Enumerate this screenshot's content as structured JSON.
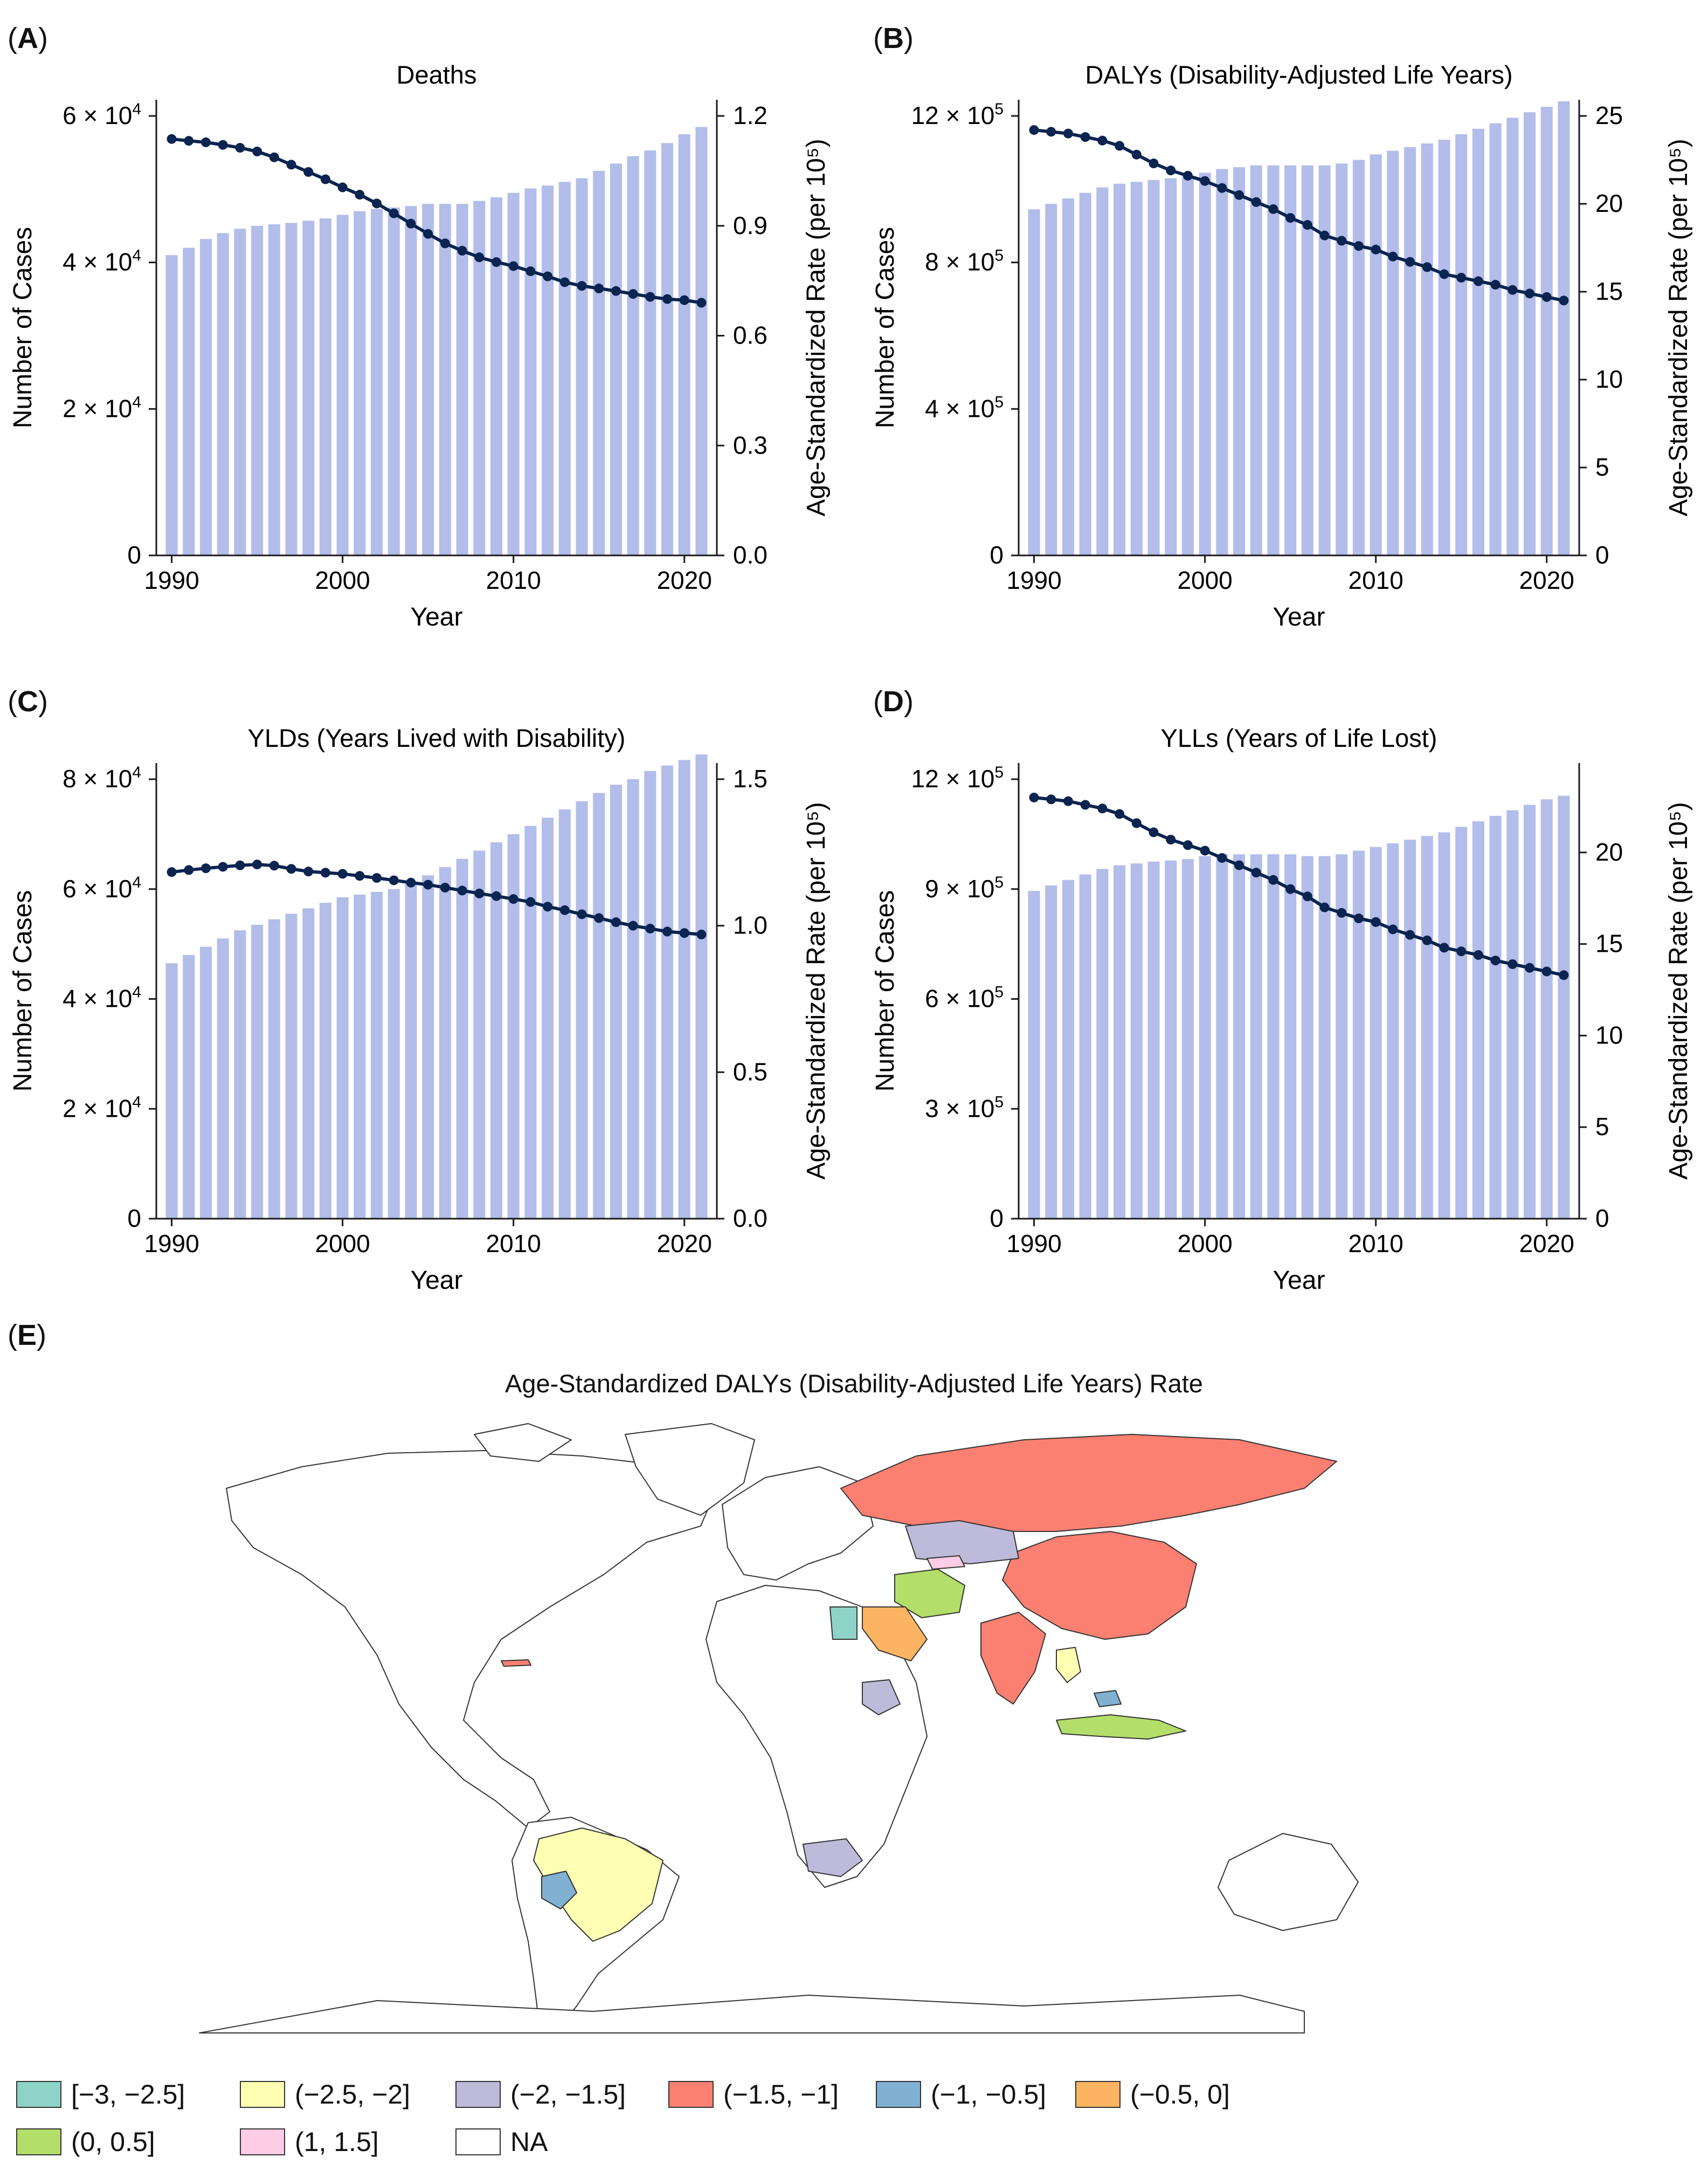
{
  "colors": {
    "bar": "#b3bdea",
    "line": "#0b2450",
    "axis": "#1a1a1a",
    "map_stroke": "#333333",
    "legend": {
      "c1": "#8dd3c7",
      "c2": "#ffffb3",
      "c3": "#bebada",
      "c4": "#fb8072",
      "c5": "#80b1d3",
      "c6": "#fdb462",
      "c7": "#b3de69",
      "c8": "#fccde5",
      "na": "#ffffff"
    }
  },
  "panels": {
    "A": {
      "tag_letter": "A",
      "paren_open": "(",
      "paren_close": ")"
    },
    "B": {
      "tag_letter": "B",
      "paren_open": "(",
      "paren_close": ")"
    },
    "C": {
      "tag_letter": "C",
      "paren_open": "(",
      "paren_close": ")"
    },
    "D": {
      "tag_letter": "D",
      "paren_open": "(",
      "paren_close": ")"
    },
    "E": {
      "tag_letter": "E",
      "paren_open": "(",
      "paren_close": ")"
    }
  },
  "chart_data": [
    {
      "type": "bar+line",
      "id": "A",
      "title": "Deaths",
      "xlabel": "Year",
      "ylabel": "Number of Cases",
      "y2label": "Age-Standardized Rate (per 10⁵)",
      "x": [
        1990,
        1991,
        1992,
        1993,
        1994,
        1995,
        1996,
        1997,
        1998,
        1999,
        2000,
        2001,
        2002,
        2003,
        2004,
        2005,
        2006,
        2007,
        2008,
        2009,
        2010,
        2011,
        2012,
        2013,
        2014,
        2015,
        2016,
        2017,
        2018,
        2019,
        2020,
        2021
      ],
      "bars": [
        41000,
        42000,
        43200,
        44000,
        44600,
        45000,
        45200,
        45400,
        45700,
        46000,
        46500,
        47000,
        47300,
        47500,
        47700,
        48000,
        48000,
        48000,
        48400,
        48900,
        49500,
        50100,
        50500,
        51000,
        51500,
        52500,
        53500,
        54500,
        55300,
        56300,
        57500,
        58500
      ],
      "rate": [
        1.137,
        1.132,
        1.128,
        1.121,
        1.113,
        1.103,
        1.087,
        1.067,
        1.047,
        1.027,
        1.005,
        0.985,
        0.961,
        0.934,
        0.906,
        0.878,
        0.852,
        0.832,
        0.814,
        0.801,
        0.79,
        0.776,
        0.762,
        0.746,
        0.736,
        0.729,
        0.722,
        0.714,
        0.706,
        0.7,
        0.697,
        0.69
      ],
      "xticks": [
        1990,
        2000,
        2010,
        2020
      ],
      "yticks": [
        0,
        20000,
        40000,
        60000
      ],
      "yticklabels": [
        {
          "m": "0",
          "e": ""
        },
        {
          "m": "2 × 10",
          "e": "4"
        },
        {
          "m": "4 × 10",
          "e": "4"
        },
        {
          "m": "6 × 10",
          "e": "4"
        }
      ],
      "ylim": [
        0,
        60000
      ],
      "y2ticks": [
        0.0,
        0.3,
        0.6,
        0.9,
        1.2
      ],
      "y2ticklabels": [
        "0.0",
        "0.3",
        "0.6",
        "0.9",
        "1.2"
      ],
      "y2lim": [
        0,
        1.2
      ]
    },
    {
      "type": "bar+line",
      "id": "B",
      "title": "DALYs (Disability-Adjusted Life Years)",
      "xlabel": "Year",
      "ylabel": "Number of Cases",
      "y2label": "Age-Standardized Rate (per 10⁵)",
      "x": [
        1990,
        1991,
        1992,
        1993,
        1994,
        1995,
        1996,
        1997,
        1998,
        1999,
        2000,
        2001,
        2002,
        2003,
        2004,
        2005,
        2006,
        2007,
        2008,
        2009,
        2010,
        2011,
        2012,
        2013,
        2014,
        2015,
        2016,
        2017,
        2018,
        2019,
        2020,
        2021
      ],
      "bars": [
        945000,
        960000,
        975000,
        990000,
        1005000,
        1015000,
        1020000,
        1025000,
        1030000,
        1035000,
        1045000,
        1055000,
        1060000,
        1065000,
        1065000,
        1065000,
        1065000,
        1065000,
        1070000,
        1080000,
        1095000,
        1105000,
        1115000,
        1125000,
        1135000,
        1150000,
        1165000,
        1180000,
        1195000,
        1210000,
        1225000,
        1240000
      ],
      "rate": [
        24.2,
        24.1,
        24.0,
        23.8,
        23.6,
        23.3,
        22.8,
        22.3,
        21.9,
        21.6,
        21.3,
        20.9,
        20.5,
        20.1,
        19.7,
        19.2,
        18.8,
        18.2,
        17.9,
        17.6,
        17.4,
        17.0,
        16.7,
        16.4,
        16.0,
        15.8,
        15.6,
        15.4,
        15.1,
        14.9,
        14.7,
        14.5
      ],
      "xticks": [
        1990,
        2000,
        2010,
        2020
      ],
      "yticks": [
        0,
        400000,
        800000,
        1200000
      ],
      "yticklabels": [
        {
          "m": "0",
          "e": ""
        },
        {
          "m": "4 × 10",
          "e": "5"
        },
        {
          "m": "8 × 10",
          "e": "5"
        },
        {
          "m": "12 × 10",
          "e": "5"
        }
      ],
      "ylim": [
        0,
        1200000
      ],
      "y2ticks": [
        0,
        5,
        10,
        15,
        20,
        25
      ],
      "y2ticklabels": [
        "0",
        "5",
        "10",
        "15",
        "20",
        "25"
      ],
      "y2lim": [
        0,
        25
      ]
    },
    {
      "type": "bar+line",
      "id": "C",
      "title": "YLDs (Years Lived with Disability)",
      "xlabel": "Year",
      "ylabel": "Number of Cases",
      "y2label": "Age-Standardized Rate (per 10⁵)",
      "x": [
        1990,
        1991,
        1992,
        1993,
        1994,
        1995,
        1996,
        1997,
        1998,
        1999,
        2000,
        2001,
        2002,
        2003,
        2004,
        2005,
        2006,
        2007,
        2008,
        2009,
        2010,
        2011,
        2012,
        2013,
        2014,
        2015,
        2016,
        2017,
        2018,
        2019,
        2020,
        2021
      ],
      "bars": [
        46500,
        48000,
        49500,
        51000,
        52500,
        53500,
        54500,
        55500,
        56500,
        57500,
        58500,
        59000,
        59500,
        60000,
        61000,
        62500,
        64000,
        65500,
        67000,
        68500,
        70000,
        71500,
        73000,
        74500,
        76000,
        77500,
        79000,
        80000,
        81500,
        82500,
        83500,
        84500
      ],
      "rate": [
        1.183,
        1.19,
        1.196,
        1.201,
        1.206,
        1.209,
        1.205,
        1.194,
        1.185,
        1.181,
        1.177,
        1.17,
        1.163,
        1.155,
        1.147,
        1.14,
        1.13,
        1.12,
        1.11,
        1.101,
        1.091,
        1.081,
        1.065,
        1.053,
        1.039,
        1.026,
        1.012,
        1.0,
        0.99,
        0.98,
        0.975,
        0.97
      ],
      "xticks": [
        1990,
        2000,
        2010,
        2020
      ],
      "yticks": [
        0,
        20000,
        40000,
        60000,
        80000
      ],
      "yticklabels": [
        {
          "m": "0",
          "e": ""
        },
        {
          "m": "2 × 10",
          "e": "4"
        },
        {
          "m": "4 × 10",
          "e": "4"
        },
        {
          "m": "6 × 10",
          "e": "4"
        },
        {
          "m": "8 × 10",
          "e": "4"
        }
      ],
      "ylim": [
        0,
        80000
      ],
      "y2ticks": [
        0.0,
        0.5,
        1.0,
        1.5
      ],
      "y2ticklabels": [
        "0.0",
        "0.5",
        "1.0",
        "1.5"
      ],
      "y2lim": [
        0,
        1.5
      ]
    },
    {
      "type": "bar+line",
      "id": "D",
      "title": "YLLs (Years of Life Lost)",
      "xlabel": "Year",
      "ylabel": "Number of Cases",
      "y2label": "Age-Standardized Rate (per 10⁵)",
      "x": [
        1990,
        1991,
        1992,
        1993,
        1994,
        1995,
        1996,
        1997,
        1998,
        1999,
        2000,
        2001,
        2002,
        2003,
        2004,
        2005,
        2006,
        2007,
        2008,
        2009,
        2010,
        2011,
        2012,
        2013,
        2014,
        2015,
        2016,
        2017,
        2018,
        2019,
        2020,
        2021
      ],
      "bars": [
        895000,
        910000,
        925000,
        940000,
        955000,
        965000,
        970000,
        975000,
        978000,
        982000,
        990000,
        995000,
        995000,
        995000,
        995000,
        995000,
        990000,
        990000,
        995000,
        1005000,
        1015000,
        1025000,
        1035000,
        1045000,
        1055000,
        1070000,
        1085000,
        1100000,
        1115000,
        1130000,
        1145000,
        1155000
      ],
      "rate": [
        23.0,
        22.9,
        22.8,
        22.6,
        22.4,
        22.1,
        21.6,
        21.1,
        20.7,
        20.4,
        20.1,
        19.7,
        19.3,
        18.9,
        18.5,
        18.0,
        17.6,
        17.0,
        16.7,
        16.4,
        16.2,
        15.8,
        15.5,
        15.2,
        14.8,
        14.6,
        14.4,
        14.1,
        13.9,
        13.7,
        13.5,
        13.3
      ],
      "xticks": [
        1990,
        2000,
        2010,
        2020
      ],
      "yticks": [
        0,
        300000,
        600000,
        900000,
        1200000
      ],
      "yticklabels": [
        {
          "m": "0",
          "e": ""
        },
        {
          "m": "3 × 10",
          "e": "5"
        },
        {
          "m": "6 × 10",
          "e": "5"
        },
        {
          "m": "9 × 10",
          "e": "5"
        },
        {
          "m": "12 × 10",
          "e": "5"
        }
      ],
      "ylim": [
        0,
        1200000
      ],
      "y2ticks": [
        0,
        5,
        10,
        15,
        20
      ],
      "y2ticklabels": [
        "0",
        "5",
        "10",
        "15",
        "20"
      ],
      "y2lim": [
        0,
        24
      ]
    }
  ],
  "map": {
    "title": "Age-Standardized DALYs (Disability-Adjusted Life Years) Rate",
    "legend": [
      {
        "label": "[−3, −2.5]",
        "color_key": "c1"
      },
      {
        "label": "(−2.5, −2]",
        "color_key": "c2"
      },
      {
        "label": "(−2, −1.5]",
        "color_key": "c3"
      },
      {
        "label": "(−1.5, −1]",
        "color_key": "c4"
      },
      {
        "label": "(−1, −0.5]",
        "color_key": "c5"
      },
      {
        "label": "(−0.5, 0]",
        "color_key": "c6"
      },
      {
        "label": "(0, 0.5]",
        "color_key": "c7"
      },
      {
        "label": "(1, 1.5]",
        "color_key": "c8"
      },
      {
        "label": "NA",
        "color_key": "na"
      }
    ]
  }
}
